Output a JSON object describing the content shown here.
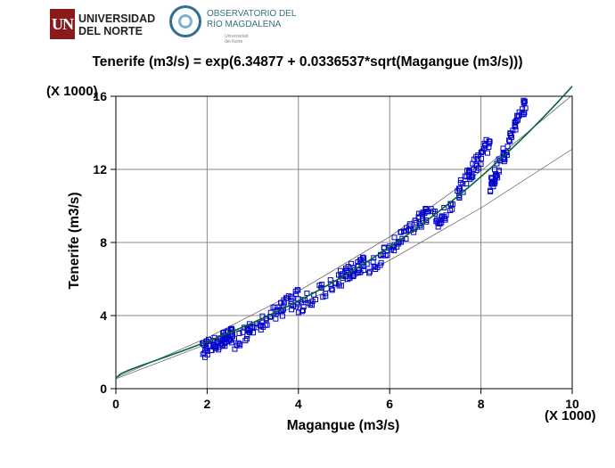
{
  "header": {
    "logo_un_mark": "UN",
    "logo_university": "UNIVERSIDAD\nDEL NORTE",
    "logo_observatory": "OBSERVATORIO DEL\nRÍO MAGDALENA",
    "logo_observatory_sub": "Universidad del Norte"
  },
  "chart_data": {
    "type": "scatter",
    "title": "Tenerife (m3/s) = exp(6.34877 + 0.0336537*sqrt(Magangue (m3/s)))",
    "xlabel": "Magangue (m3/s)",
    "ylabel": "Tenerife (m3/s)",
    "x_multiplier": "(X 1000)",
    "y_multiplier": "(X 1000)",
    "xlim": [
      0,
      10
    ],
    "ylim": [
      0,
      16
    ],
    "x_ticks": [
      "0",
      "2",
      "4",
      "6",
      "8",
      "10"
    ],
    "y_ticks": [
      "0",
      "4",
      "8",
      "12",
      "16"
    ],
    "grid": true,
    "marker": "square",
    "colors": {
      "points": "#0000cc",
      "fit": "#006633",
      "band": "#555555",
      "grid": "#888888"
    },
    "model": {
      "a": 6.34877,
      "b": 0.0336537
    },
    "band_upper": {
      "x": [
        0,
        2,
        4,
        6,
        8,
        10
      ],
      "y": [
        0.6,
        2.78,
        5.33,
        8.31,
        11.91,
        16.06
      ]
    },
    "band_lower": {
      "x": [
        0,
        2,
        4,
        6,
        8,
        10
      ],
      "y": [
        0.54,
        2.45,
        4.58,
        7.03,
        9.89,
        13.11
      ]
    },
    "point_clusters": [
      {
        "x": [
          1.9,
          2.6
        ],
        "y": [
          2.1,
          3.0
        ]
      },
      {
        "x": [
          2.6,
          4.0
        ],
        "y": [
          2.6,
          5.0
        ]
      },
      {
        "x": [
          4.0,
          5.5
        ],
        "y": [
          4.5,
          7.0
        ]
      },
      {
        "x": [
          5.5,
          7.0
        ],
        "y": [
          6.5,
          10.0
        ]
      },
      {
        "x": [
          7.0,
          8.2
        ],
        "y": [
          8.8,
          13.5
        ]
      },
      {
        "x": [
          8.2,
          9.0
        ],
        "y": [
          11.0,
          15.8
        ]
      }
    ]
  }
}
